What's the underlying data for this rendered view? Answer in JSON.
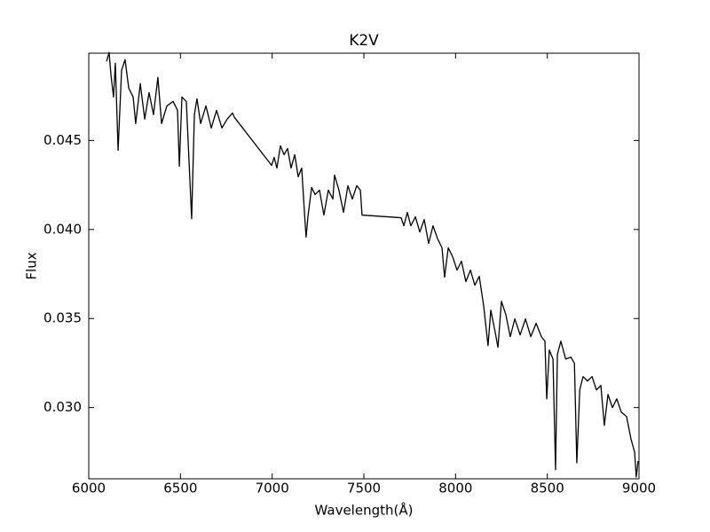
{
  "chart_data": {
    "type": "line",
    "title": "K2V",
    "xlabel": "Wavelength(Å)",
    "ylabel": "Flux",
    "color": "#000000",
    "xlim": [
      6000,
      9000
    ],
    "ylim": [
      0.026,
      0.0499
    ],
    "xticks": [
      6000,
      6500,
      7000,
      7500,
      8000,
      8500,
      9000
    ],
    "yticks": [
      {
        "value": 0.03,
        "label": "0.030"
      },
      0.035,
      {
        "value": 0.04,
        "label": "0.040"
      },
      0.045
    ],
    "x": [
      6097,
      6111,
      6121,
      6135,
      6145,
      6160,
      6179,
      6198,
      6218,
      6242,
      6256,
      6281,
      6305,
      6329,
      6353,
      6377,
      6397,
      6426,
      6460,
      6484,
      6494,
      6508,
      6532,
      6561,
      6576,
      6590,
      6610,
      6639,
      6668,
      6697,
      6726,
      6755,
      6784,
      6794,
      6997,
      7011,
      7026,
      7045,
      7065,
      7084,
      7103,
      7123,
      7142,
      7161,
      7176,
      7185,
      7195,
      7215,
      7234,
      7258,
      7282,
      7306,
      7331,
      7340,
      7364,
      7389,
      7413,
      7437,
      7461,
      7481,
      7490,
      7703,
      7718,
      7737,
      7756,
      7781,
      7805,
      7829,
      7853,
      7877,
      7902,
      7926,
      7940,
      7960,
      7984,
      8008,
      8032,
      8056,
      8081,
      8105,
      8129,
      8153,
      8177,
      8192,
      8216,
      8231,
      8250,
      8274,
      8298,
      8323,
      8352,
      8381,
      8410,
      8439,
      8468,
      8487,
      8497,
      8511,
      8531,
      8545,
      8555,
      8574,
      8600,
      8629,
      8648,
      8661,
      8677,
      8695,
      8719,
      8744,
      8768,
      8792,
      8811,
      8831,
      8855,
      8879,
      8903,
      8932,
      8956,
      8976,
      8985,
      8995
    ],
    "values": [
      0.04944,
      0.04994,
      0.04869,
      0.04744,
      0.04934,
      0.04445,
      0.04894,
      0.04954,
      0.04794,
      0.04744,
      0.04595,
      0.04819,
      0.0462,
      0.04769,
      0.04645,
      0.04854,
      0.04595,
      0.04694,
      0.04719,
      0.04669,
      0.04355,
      0.04744,
      0.04719,
      0.04061,
      0.04645,
      0.04734,
      0.04595,
      0.04694,
      0.0457,
      0.04669,
      0.0457,
      0.0462,
      0.04654,
      0.0463,
      0.0436,
      0.04405,
      0.04345,
      0.0447,
      0.0442,
      0.04455,
      0.04345,
      0.0442,
      0.04296,
      0.04345,
      0.04096,
      0.03957,
      0.04071,
      0.04236,
      0.04196,
      0.04221,
      0.04081,
      0.04221,
      0.04171,
      0.04306,
      0.04221,
      0.04096,
      0.04246,
      0.04171,
      0.04246,
      0.04221,
      0.04081,
      0.04066,
      0.04021,
      0.04096,
      0.04021,
      0.04071,
      0.03986,
      0.04056,
      0.03922,
      0.04021,
      0.03947,
      0.03897,
      0.03732,
      0.03897,
      0.03847,
      0.03772,
      0.03822,
      0.03707,
      0.03772,
      0.03687,
      0.03737,
      0.03572,
      0.03348,
      0.03547,
      0.03423,
      0.03338,
      0.03597,
      0.03522,
      0.03398,
      0.03498,
      0.03408,
      0.03498,
      0.03398,
      0.03473,
      0.03398,
      0.03373,
      0.03049,
      0.03323,
      0.03273,
      0.02651,
      0.03298,
      0.03373,
      0.03273,
      0.03283,
      0.03248,
      0.0269,
      0.03099,
      0.03174,
      0.03149,
      0.03174,
      0.03099,
      0.03124,
      0.029,
      0.03074,
      0.03,
      0.03049,
      0.02975,
      0.0295,
      0.02825,
      0.0275,
      0.0261,
      0.027
    ]
  }
}
